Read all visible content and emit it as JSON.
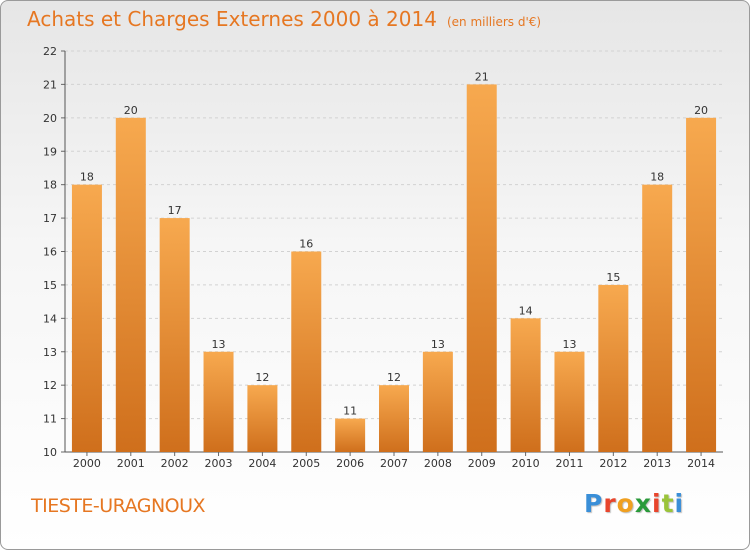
{
  "header": {
    "title": "Achats et Charges Externes 2000 à 2014",
    "unit": "(en milliers d'€)"
  },
  "footer": {
    "commune": "TIESTE-URAGNOUX",
    "logo_letters": [
      "P",
      "r",
      "o",
      "x",
      "i",
      "t",
      "i"
    ]
  },
  "colors": {
    "accent": "#e67722",
    "bar_light": "#f7a94f",
    "bar_dark": "#cf6f1c",
    "logo": [
      "#3a8fd8",
      "#e8452c",
      "#f0a020",
      "#2a9a3a",
      "#e8452c",
      "#9bc43a",
      "#3a8fd8"
    ]
  },
  "chart_data": {
    "type": "bar",
    "title": "Achats et Charges Externes 2000 à 2014",
    "subtitle": "(en milliers d'€)",
    "categories": [
      "2000",
      "2001",
      "2002",
      "2003",
      "2004",
      "2005",
      "2006",
      "2007",
      "2008",
      "2009",
      "2010",
      "2011",
      "2012",
      "2013",
      "2014"
    ],
    "values": [
      18,
      20,
      17,
      13,
      12,
      16,
      11,
      12,
      13,
      21,
      14,
      13,
      15,
      18,
      20
    ],
    "ylim": [
      10,
      22
    ],
    "yticks": [
      10,
      11,
      12,
      13,
      14,
      15,
      16,
      17,
      18,
      19,
      20,
      21,
      22
    ],
    "ytick_labels": [
      "10",
      "11",
      "12",
      "13",
      "14",
      "15",
      "16",
      "17",
      "18",
      "19",
      "20",
      "21",
      "22"
    ],
    "data_labels": [
      "18",
      "20",
      "17",
      "13",
      "12",
      "16",
      "11",
      "12",
      "13",
      "21",
      "14",
      "13",
      "15",
      "18",
      "20"
    ],
    "grid": "horizontal dashed",
    "legend": "none"
  }
}
